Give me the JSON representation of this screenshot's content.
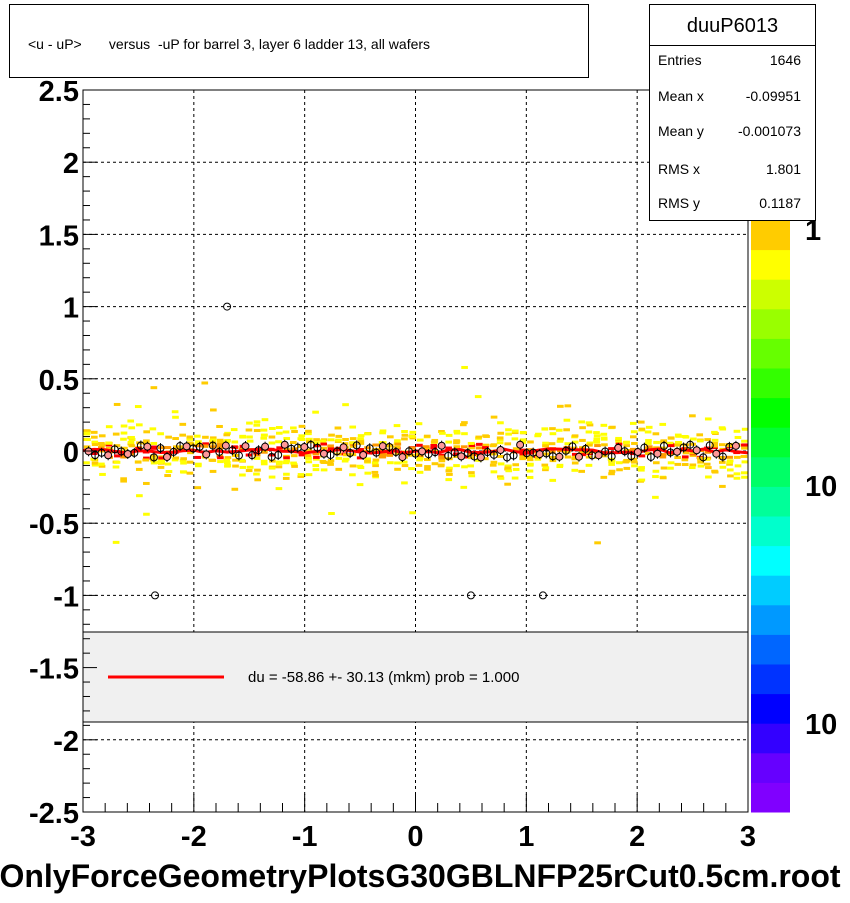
{
  "histogram": {
    "title": "<u - uP>       versus  -uP for barrel 3, layer 6 ladder 13, all wafers",
    "name": "duuP6013",
    "stats": [
      {
        "label": "Entries",
        "value": "1646"
      },
      {
        "label": "Mean x",
        "value": "-0.09951"
      },
      {
        "label": "Mean y",
        "value": "-0.001073"
      },
      {
        "label": "RMS x",
        "value": "1.801"
      },
      {
        "label": "RMS y",
        "value": "0.1187"
      }
    ]
  },
  "legend": {
    "fit_label": "du =  -58.86 +- 30.13 (mkm) prob = 1.000",
    "fit_color": "#ff0000"
  },
  "x_title": "OnlyForceGeometryPlotsG30GBLNFP25rCut0.5cm.root",
  "chart_data": {
    "type": "heatmap",
    "xlim": [
      -3,
      3
    ],
    "ylim": [
      -2.5,
      2.5
    ],
    "x_ticks": [
      "-3",
      "-2",
      "-1",
      "0",
      "1",
      "2",
      "3"
    ],
    "y_ticks": [
      "-2.5",
      "-2",
      "-1.5",
      "-1",
      "-0.5",
      "0",
      "0.5",
      "1",
      "1.5",
      "2",
      "2.5"
    ],
    "grid": true,
    "z_ticks": [
      "1",
      "10",
      "10"
    ],
    "palette": [
      "#8000ff",
      "#6600ff",
      "#3300ff",
      "#0000ff",
      "#0033ff",
      "#0066ff",
      "#0099ff",
      "#00ccff",
      "#00ffff",
      "#00ffcc",
      "#00ff99",
      "#00ff66",
      "#00ff33",
      "#00ff00",
      "#33ff00",
      "#66ff00",
      "#99ff00",
      "#ccff00",
      "#ffff00",
      "#ffcc00"
    ],
    "fit": {
      "y": 0.0,
      "color": "#ff0000"
    },
    "profile_points": [
      {
        "x": -1.7,
        "y": 1.0
      },
      {
        "x": -2.35,
        "y": -1.0
      },
      {
        "x": 0.5,
        "y": -1.0
      },
      {
        "x": 1.15,
        "y": -1.0
      }
    ]
  }
}
